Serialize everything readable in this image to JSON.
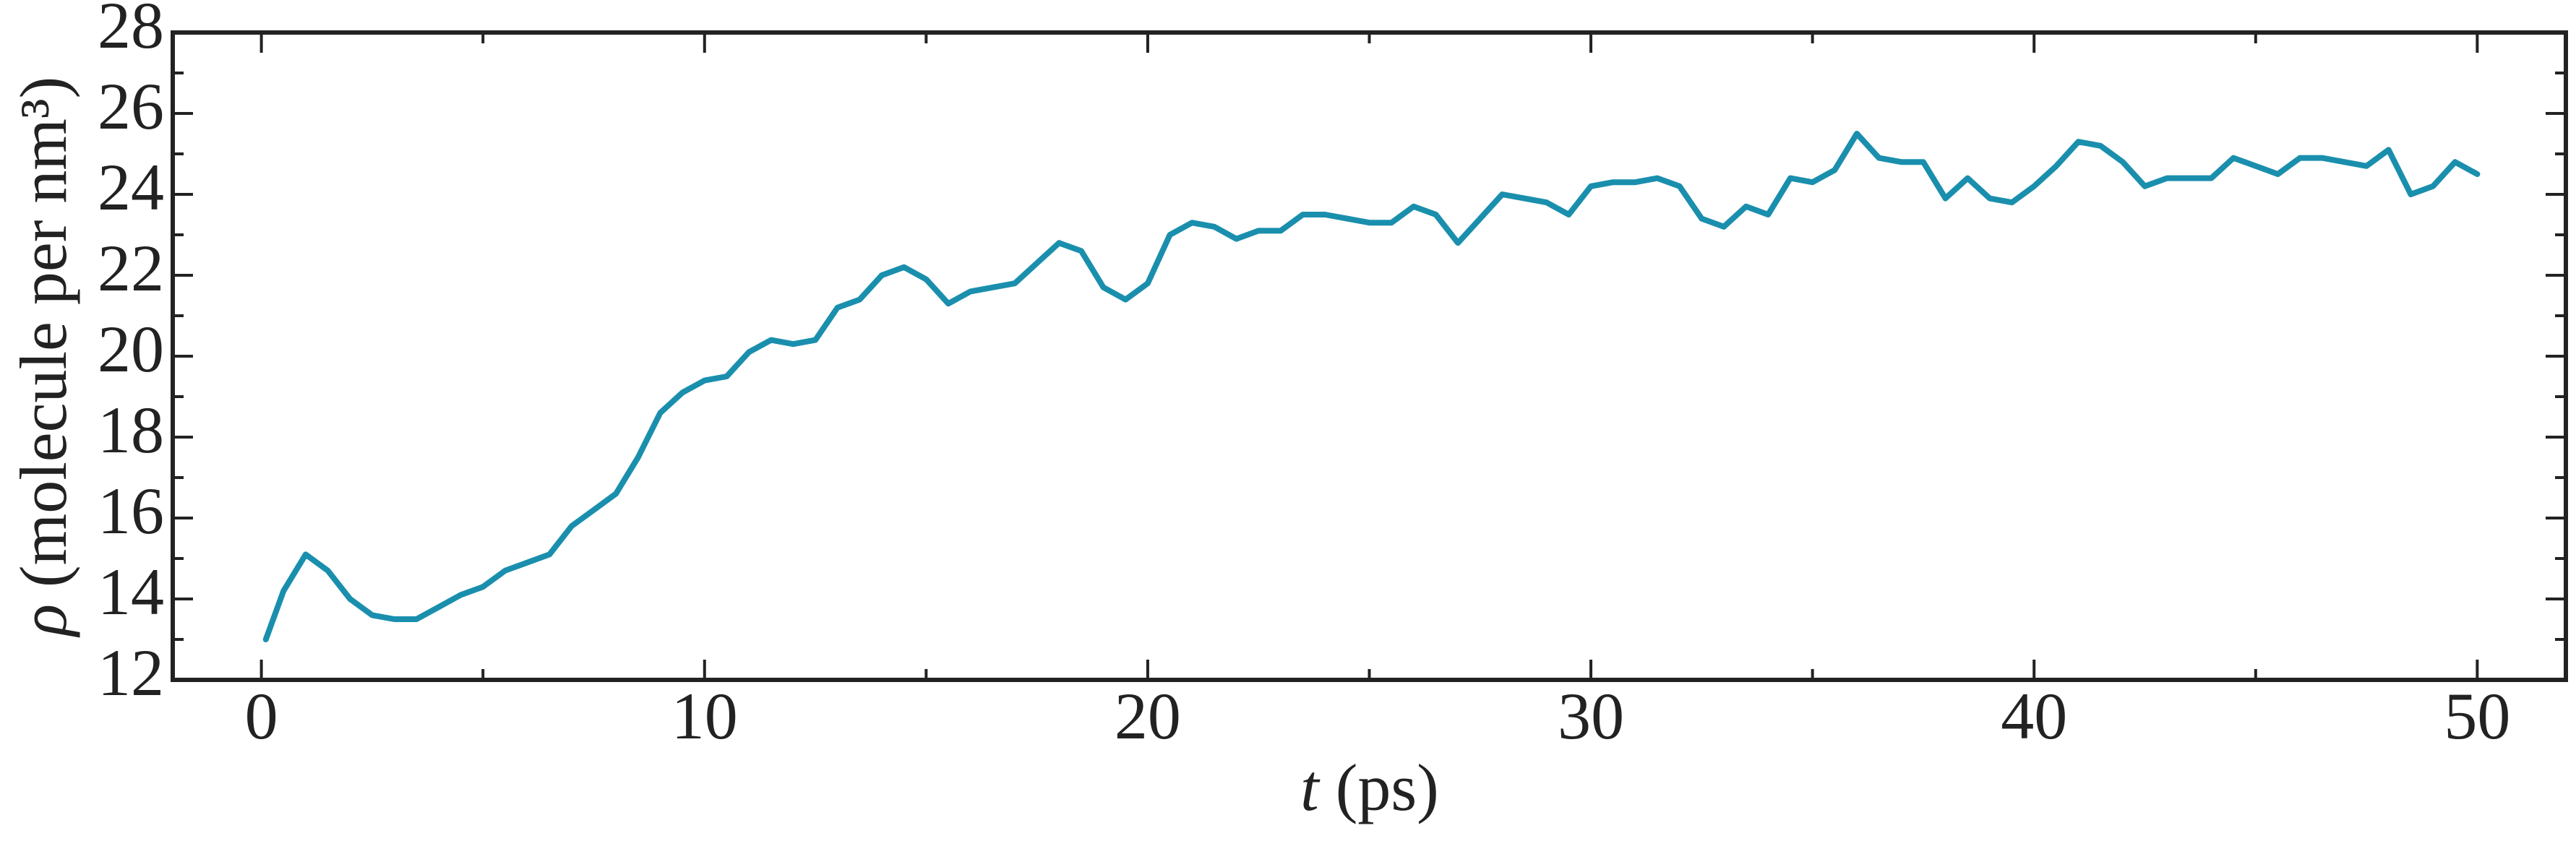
{
  "chart_data": {
    "type": "line",
    "xlabel": {
      "symbol": "t",
      "unit": "(ps)"
    },
    "ylabel": {
      "symbol": "ρ",
      "unit": "(molecule per nm³)"
    },
    "x": [
      0.1,
      0.5,
      1,
      1.5,
      2,
      2.5,
      3,
      3.5,
      4,
      4.5,
      5,
      5.5,
      6,
      6.5,
      7,
      7.5,
      8,
      8.5,
      9,
      9.5,
      10,
      10.5,
      11,
      11.5,
      12,
      12.5,
      13,
      13.5,
      14,
      14.5,
      15,
      15.5,
      16,
      16.5,
      17,
      17.5,
      18,
      18.5,
      19,
      19.5,
      20,
      20.5,
      21,
      21.5,
      22,
      22.5,
      23,
      23.5,
      24,
      24.5,
      25,
      25.5,
      26,
      26.5,
      27,
      27.5,
      28,
      28.5,
      29,
      29.5,
      30,
      30.5,
      31,
      31.5,
      32,
      32.5,
      33,
      33.5,
      34,
      34.5,
      35,
      35.5,
      36,
      36.5,
      37,
      37.5,
      38,
      38.5,
      39,
      39.5,
      40,
      40.5,
      41,
      41.5,
      42,
      42.5,
      43,
      43.5,
      44,
      44.5,
      45,
      45.5,
      46,
      46.5,
      47,
      47.5,
      48,
      48.5,
      49,
      49.5,
      50
    ],
    "series": [
      {
        "color": "#1a8fad",
        "values": [
          13.0,
          14.2,
          15.1,
          14.7,
          14.0,
          13.6,
          13.5,
          13.5,
          13.8,
          14.1,
          14.3,
          14.7,
          14.9,
          15.1,
          15.8,
          16.2,
          16.6,
          17.5,
          18.6,
          19.1,
          19.4,
          19.5,
          20.1,
          20.4,
          20.3,
          20.4,
          21.2,
          21.4,
          22.0,
          22.2,
          21.9,
          21.3,
          21.6,
          21.7,
          21.8,
          22.3,
          22.8,
          22.6,
          21.7,
          21.4,
          21.8,
          23.0,
          23.3,
          23.2,
          22.9,
          23.1,
          23.1,
          23.5,
          23.5,
          23.4,
          23.3,
          23.3,
          23.7,
          23.5,
          22.8,
          23.4,
          24.0,
          23.9,
          23.8,
          23.5,
          24.2,
          24.3,
          24.3,
          24.4,
          24.2,
          23.4,
          23.2,
          23.7,
          23.5,
          24.4,
          24.3,
          24.6,
          25.5,
          24.9,
          24.8,
          24.8,
          23.9,
          24.4,
          23.9,
          23.8,
          24.2,
          24.7,
          25.3,
          25.2,
          24.8,
          24.2,
          24.4,
          24.4,
          24.4,
          24.9,
          24.7,
          24.5,
          24.9,
          24.9,
          24.8,
          24.7,
          25.1,
          24.0,
          24.2,
          24.8,
          24.5
        ]
      }
    ],
    "xlim": [
      -2,
      52
    ],
    "ylim": [
      12,
      28
    ],
    "xticks": [
      0,
      10,
      20,
      30,
      40,
      50
    ],
    "yticks": [
      12,
      14,
      16,
      18,
      20,
      22,
      24,
      26,
      28
    ],
    "xminorticks": [
      5,
      15,
      25,
      35,
      45
    ],
    "yminorticks": [
      13,
      15,
      17,
      19,
      21,
      23,
      25,
      27
    ]
  }
}
